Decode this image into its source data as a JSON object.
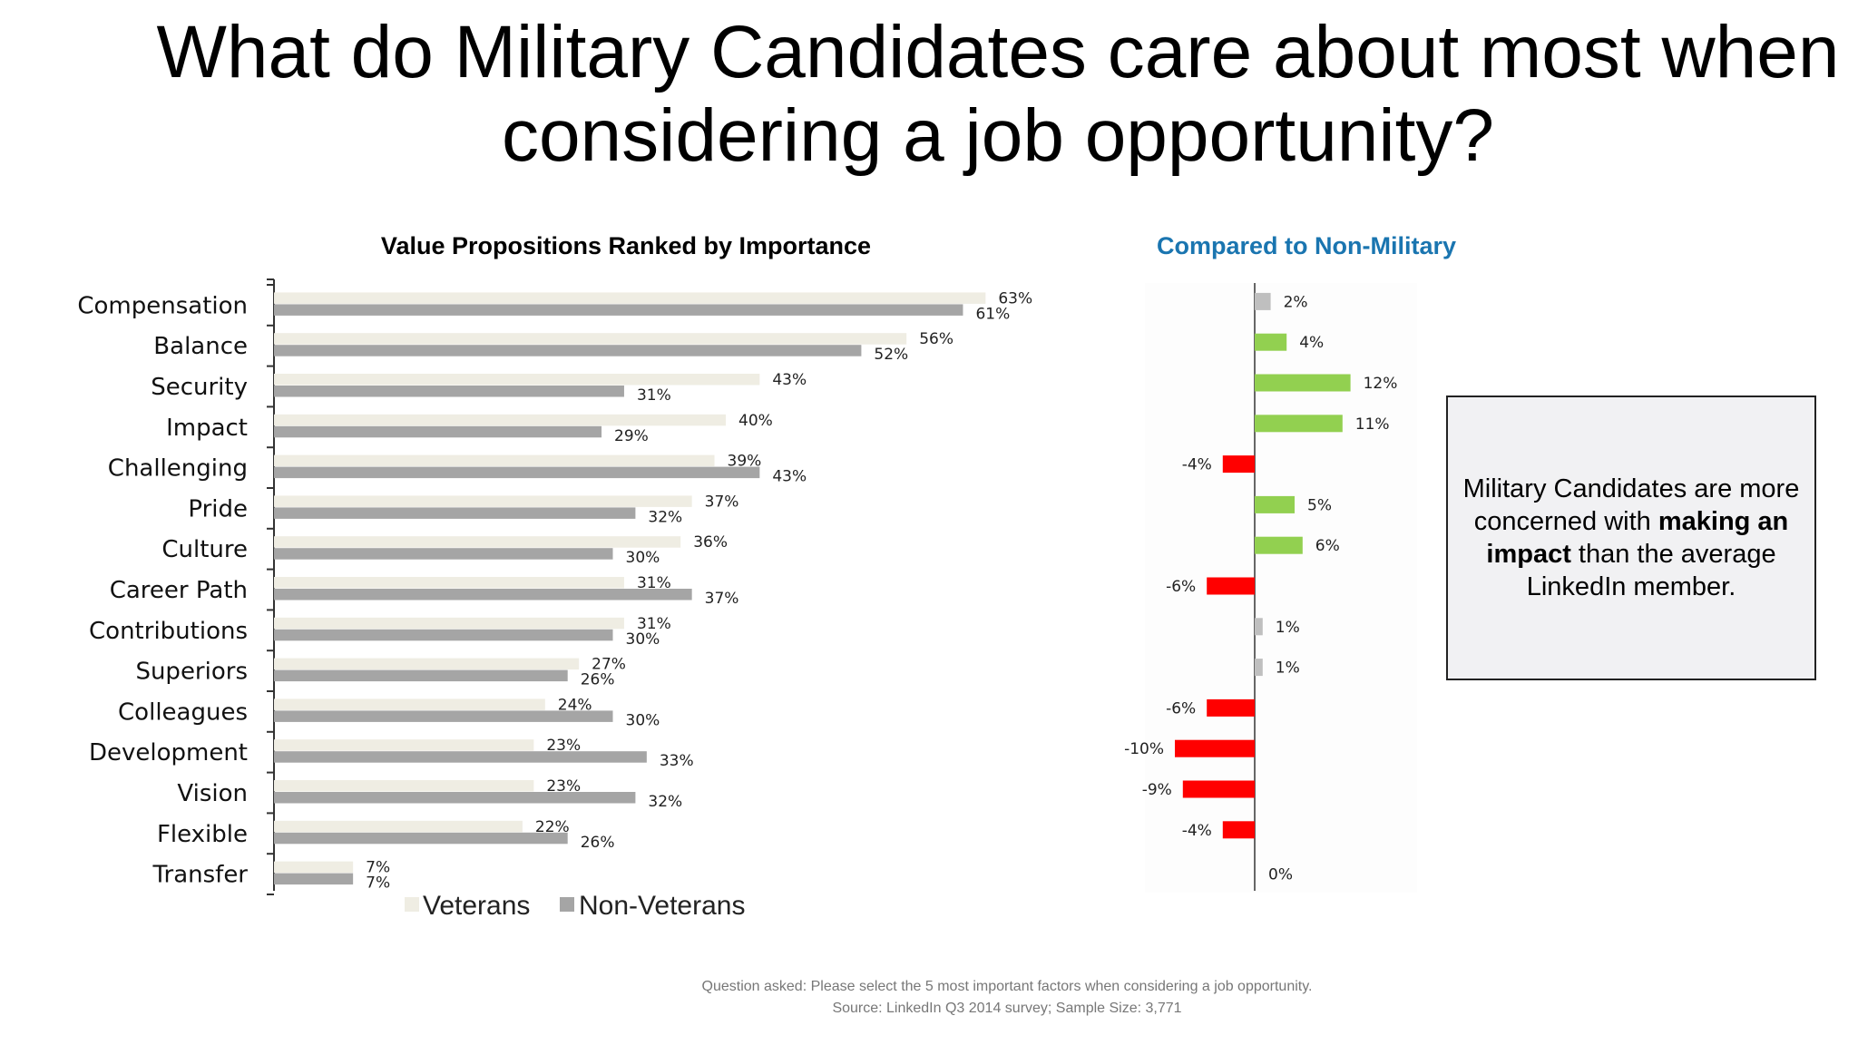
{
  "slide": {
    "title": "What do Military Candidates care about most when considering a job opportunity?"
  },
  "callout": {
    "part1": "Military Candidates are more concerned with ",
    "bold": "making an impact",
    "part2": " than the average LinkedIn member."
  },
  "footnote": {
    "line1": "Question asked: Please select the 5 most important factors when considering a job opportunity.",
    "line2": "Source: LinkedIn Q3 2014 survey; Sample Size: 3,771"
  },
  "colors": {
    "veterans": "#efede3",
    "non_veterans": "#a5a5a5",
    "positive": "#92d050",
    "negative": "#ff0000",
    "neutral": "#bfbfbf",
    "right_title": "#1a75b0"
  },
  "chart_data": [
    {
      "type": "bar",
      "orientation": "horizontal",
      "title": "Value Propositions Ranked by Importance",
      "categories": [
        "Compensation",
        "Balance",
        "Security",
        "Impact",
        "Challenging",
        "Pride",
        "Culture",
        "Career Path",
        "Contributions",
        "Superiors",
        "Colleagues",
        "Development",
        "Vision",
        "Flexible",
        "Transfer"
      ],
      "series": [
        {
          "name": "Veterans",
          "values": [
            63,
            56,
            43,
            40,
            39,
            37,
            36,
            31,
            31,
            27,
            24,
            23,
            23,
            22,
            7
          ]
        },
        {
          "name": "Non-Veterans",
          "values": [
            61,
            52,
            31,
            29,
            43,
            32,
            30,
            37,
            30,
            26,
            30,
            33,
            32,
            26,
            7
          ]
        }
      ],
      "value_suffix": "%",
      "legend_position": "bottom",
      "grid": false
    },
    {
      "type": "bar",
      "orientation": "horizontal",
      "title": "Compared to Non-Military",
      "categories": [
        "Compensation",
        "Balance",
        "Security",
        "Impact",
        "Challenging",
        "Pride",
        "Culture",
        "Career Path",
        "Contributions",
        "Superiors",
        "Colleagues",
        "Development",
        "Vision",
        "Flexible",
        "Transfer"
      ],
      "values": [
        2,
        4,
        12,
        11,
        -4,
        5,
        6,
        -6,
        1,
        1,
        -6,
        -10,
        -9,
        -4,
        0
      ],
      "value_suffix": "%",
      "grid": false
    }
  ]
}
